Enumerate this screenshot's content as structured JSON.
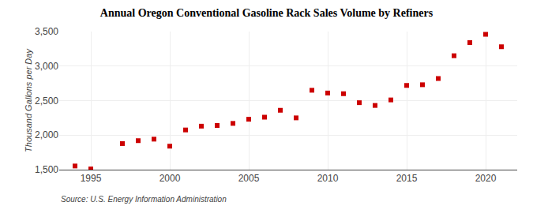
{
  "chart_data": {
    "type": "scatter",
    "title": "Annual Oregon Conventional Gasoline Rack Sales Volume by Refiners",
    "ylabel": "Thousand Gallons per Day",
    "annotations": [
      "Source: U.S. Energy Information Administration"
    ],
    "x": [
      1994,
      1995,
      1997,
      1998,
      1999,
      2000,
      2001,
      2002,
      2003,
      2004,
      2005,
      2006,
      2007,
      2008,
      2009,
      2010,
      2011,
      2012,
      2013,
      2014,
      2015,
      2016,
      2017,
      2018,
      2019,
      2020,
      2021
    ],
    "values": [
      1553,
      1510,
      1878,
      1920,
      1942,
      1840,
      2075,
      2130,
      2140,
      2170,
      2230,
      2260,
      2360,
      2250,
      2650,
      2610,
      2600,
      2470,
      2430,
      2510,
      2720,
      2730,
      2820,
      3150,
      3340,
      3460,
      3280
    ],
    "color": "#cc0000",
    "marker": "square",
    "xlim": [
      1993,
      2022
    ],
    "xticks": [
      1995,
      2000,
      2005,
      2010,
      2015,
      2020
    ],
    "ylim": [
      1500,
      3500
    ],
    "yticks": [
      {
        "value": 1500,
        "label": "1,500"
      },
      {
        "value": 2000,
        "label": "2,000"
      },
      {
        "value": 2500,
        "label": "2,500"
      },
      {
        "value": 3000,
        "label": "3,000"
      },
      {
        "value": 3500,
        "label": "3,500"
      }
    ],
    "grid": true
  }
}
